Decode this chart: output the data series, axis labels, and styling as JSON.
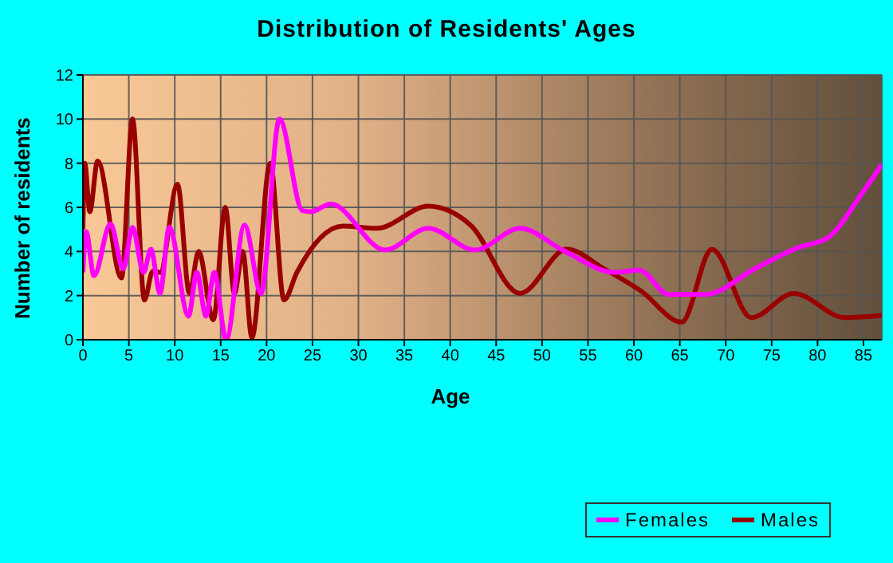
{
  "chart_data": {
    "type": "line",
    "title": "Distribution of Residents' Ages",
    "xlabel": "Age",
    "ylabel": "Number of residents",
    "xlim": [
      0,
      87
    ],
    "xticks": [
      0,
      5,
      10,
      15,
      20,
      25,
      30,
      35,
      40,
      45,
      50,
      55,
      60,
      65,
      70,
      75,
      80,
      85
    ],
    "ylim": [
      0,
      12
    ],
    "yticks": [
      0,
      2,
      4,
      6,
      8,
      10,
      12
    ],
    "grid": true,
    "legend": "bottom right",
    "marker": "none",
    "line_style": "solid",
    "series": [
      {
        "name": "Males",
        "color": "#990000",
        "x": [
          0,
          0.2,
          0.75,
          1.6,
          4.2,
          5.4,
          6.7,
          7.6,
          8.4,
          10.3,
          11.6,
          12.6,
          14.2,
          15.5,
          16.5,
          17.4,
          18.4,
          20.4,
          21.9,
          23.3,
          28.3,
          32,
          37.6,
          42.2,
          47.6,
          52.7,
          56.8,
          60.8,
          65.2,
          68.5,
          72.8,
          77.4,
          83,
          87
        ],
        "values": [
          5,
          8,
          5.8,
          8.1,
          2.8,
          10,
          1.8,
          3.1,
          3.05,
          7.05,
          2.1,
          4,
          0.9,
          6,
          2.1,
          4,
          0.1,
          8,
          1.8,
          3.05,
          5.15,
          5.05,
          6.05,
          5.2,
          2.1,
          4.1,
          3.2,
          2.2,
          0.8,
          4.1,
          1,
          2.1,
          1,
          1.1
        ]
      },
      {
        "name": "Females",
        "color": "#ff00ff",
        "x": [
          0,
          0.35,
          1.2,
          3,
          4.4,
          5.4,
          6.6,
          7.4,
          8.4,
          9.4,
          11.5,
          12.4,
          13.4,
          14.3,
          15.6,
          17.6,
          19.4,
          21.4,
          23.9,
          24.8,
          27,
          32.9,
          37.6,
          42.7,
          47.6,
          52.5,
          57.9,
          60.6,
          63.8,
          67.8,
          73.1,
          77.7,
          81.2,
          84.7,
          87
        ],
        "values": [
          3.05,
          4.9,
          2.9,
          5.25,
          3.2,
          5.1,
          3.05,
          4.1,
          2.1,
          5.1,
          1.07,
          3.05,
          1.07,
          3.05,
          0,
          5.2,
          2.1,
          10,
          5.85,
          5.8,
          6.15,
          4.07,
          5.05,
          4.07,
          5.05,
          4,
          3.05,
          3.15,
          2.05,
          2.05,
          3.2,
          4.15,
          4.65,
          6.55,
          7.95
        ]
      }
    ]
  }
}
